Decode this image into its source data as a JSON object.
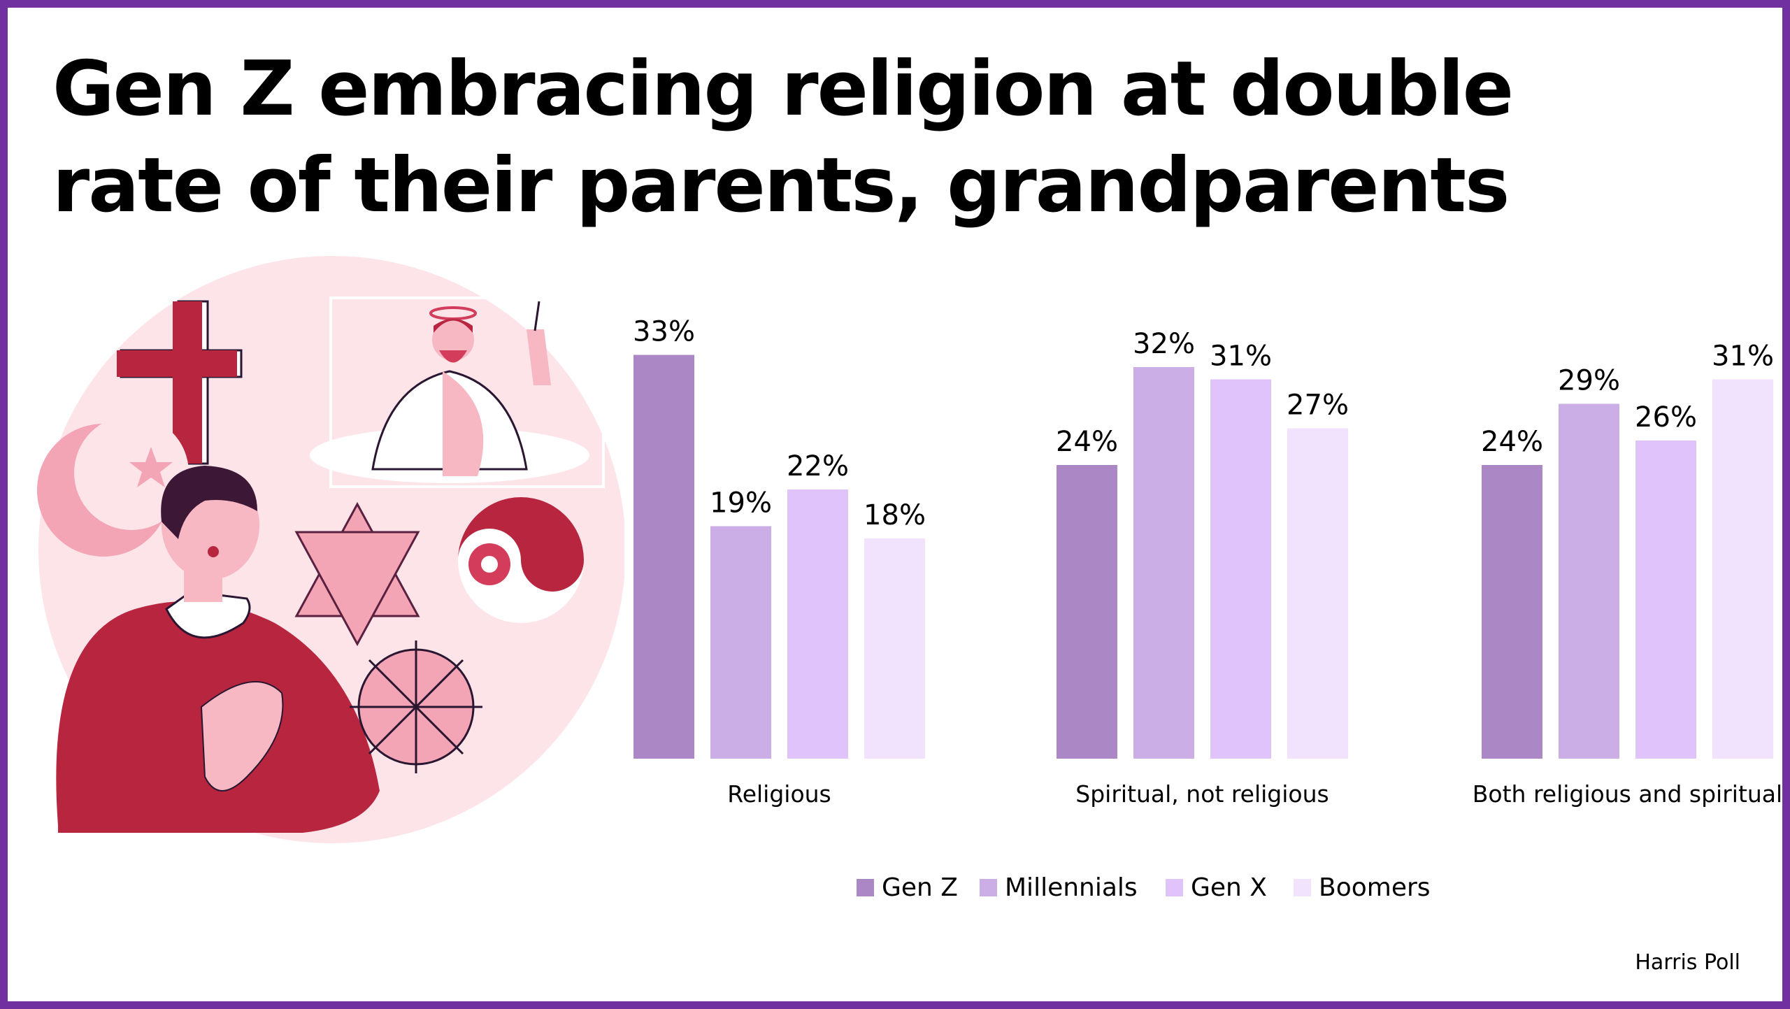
{
  "page": {
    "title": "Gen Z embracing religion at double rate of their parents, grandparents",
    "source": "Harris Poll",
    "border_color": "#7030a0"
  },
  "illustration": {
    "icons": [
      "cross-icon",
      "halo-figure-icon",
      "crescent-star-icon",
      "star-of-david-icon",
      "yin-yang-icon",
      "dharma-wheel-icon",
      "praying-person-icon"
    ]
  },
  "chart_data": {
    "type": "bar",
    "categories": [
      "Religious",
      "Spiritual, not religious",
      "Both religious and spiritual"
    ],
    "series": [
      {
        "name": "Gen Z",
        "values": [
          33,
          24,
          24
        ],
        "color": "#ab87c6"
      },
      {
        "name": "Millennials",
        "values": [
          19,
          32,
          29
        ],
        "color": "#cbaee6"
      },
      {
        "name": "Gen X",
        "values": [
          22,
          31,
          26
        ],
        "color": "#e1c3fb"
      },
      {
        "name": "Boomers",
        "values": [
          18,
          27,
          31
        ],
        "color": "#f1e2fd"
      }
    ],
    "value_suffix": "%",
    "ylim": [
      0,
      35
    ],
    "grid": false,
    "legend_position": "bottom"
  }
}
